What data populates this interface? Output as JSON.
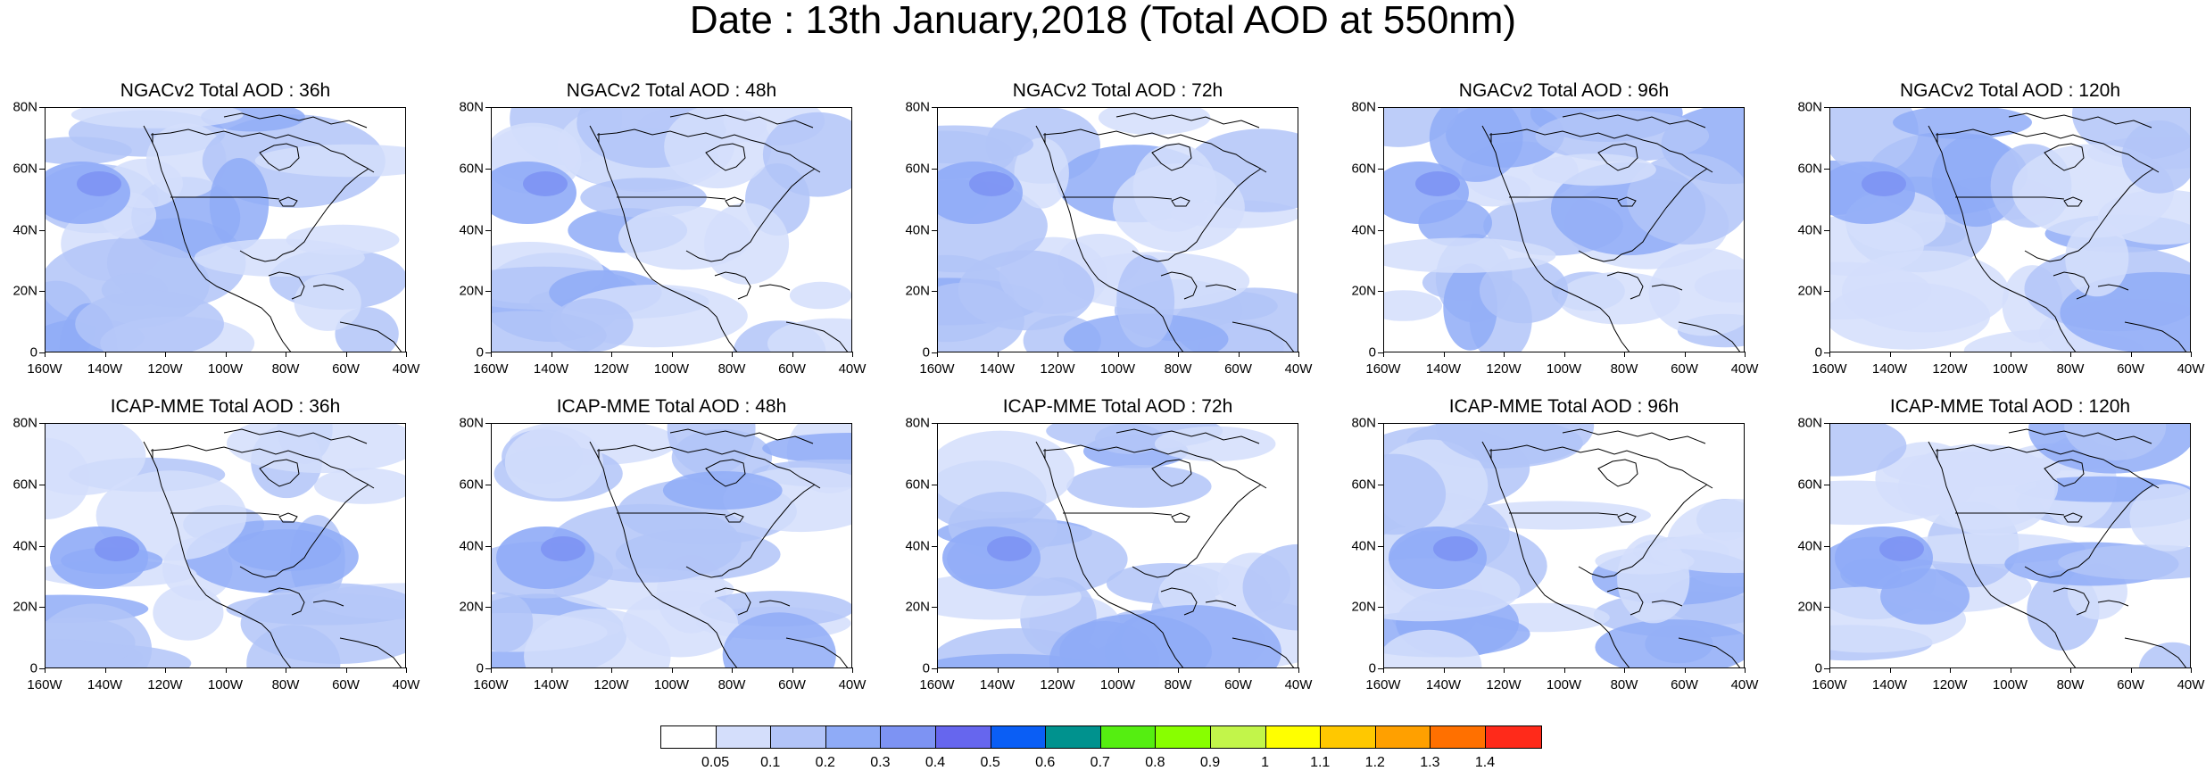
{
  "title": "Date : 13th January,2018 (Total AOD at 550nm)",
  "y_ticks": [
    "80N",
    "60N",
    "40N",
    "20N",
    "0"
  ],
  "x_ticks": [
    "160W",
    "140W",
    "120W",
    "100W",
    "80W",
    "60W",
    "40W"
  ],
  "rows": [
    {
      "panels": [
        {
          "title": "NGACv2 Total AOD : 36h"
        },
        {
          "title": "NGACv2 Total AOD : 48h"
        },
        {
          "title": "NGACv2 Total AOD : 72h"
        },
        {
          "title": "NGACv2 Total AOD : 96h"
        },
        {
          "title": "NGACv2 Total AOD : 120h"
        }
      ]
    },
    {
      "panels": [
        {
          "title": "ICAP-MME Total AOD : 36h"
        },
        {
          "title": "ICAP-MME Total AOD : 48h"
        },
        {
          "title": "ICAP-MME Total AOD : 72h"
        },
        {
          "title": "ICAP-MME Total AOD : 96h"
        },
        {
          "title": "ICAP-MME Total AOD : 120h"
        }
      ]
    }
  ],
  "colorbar": {
    "labels": [
      "0.05",
      "0.1",
      "0.2",
      "0.3",
      "0.4",
      "0.5",
      "0.6",
      "0.7",
      "0.8",
      "0.9",
      "1",
      "1.1",
      "1.2",
      "1.3",
      "1.4"
    ],
    "colors": [
      "#ffffff",
      "#d4defb",
      "#b2c4f8",
      "#8fabf7",
      "#7d93f3",
      "#6666ee",
      "#0a5ef5",
      "#00928e",
      "#55ee11",
      "#88ff00",
      "#c2f54a",
      "#ffff00",
      "#ffc800",
      "#ffa000",
      "#ff7000",
      "#ff2a1a"
    ]
  }
}
